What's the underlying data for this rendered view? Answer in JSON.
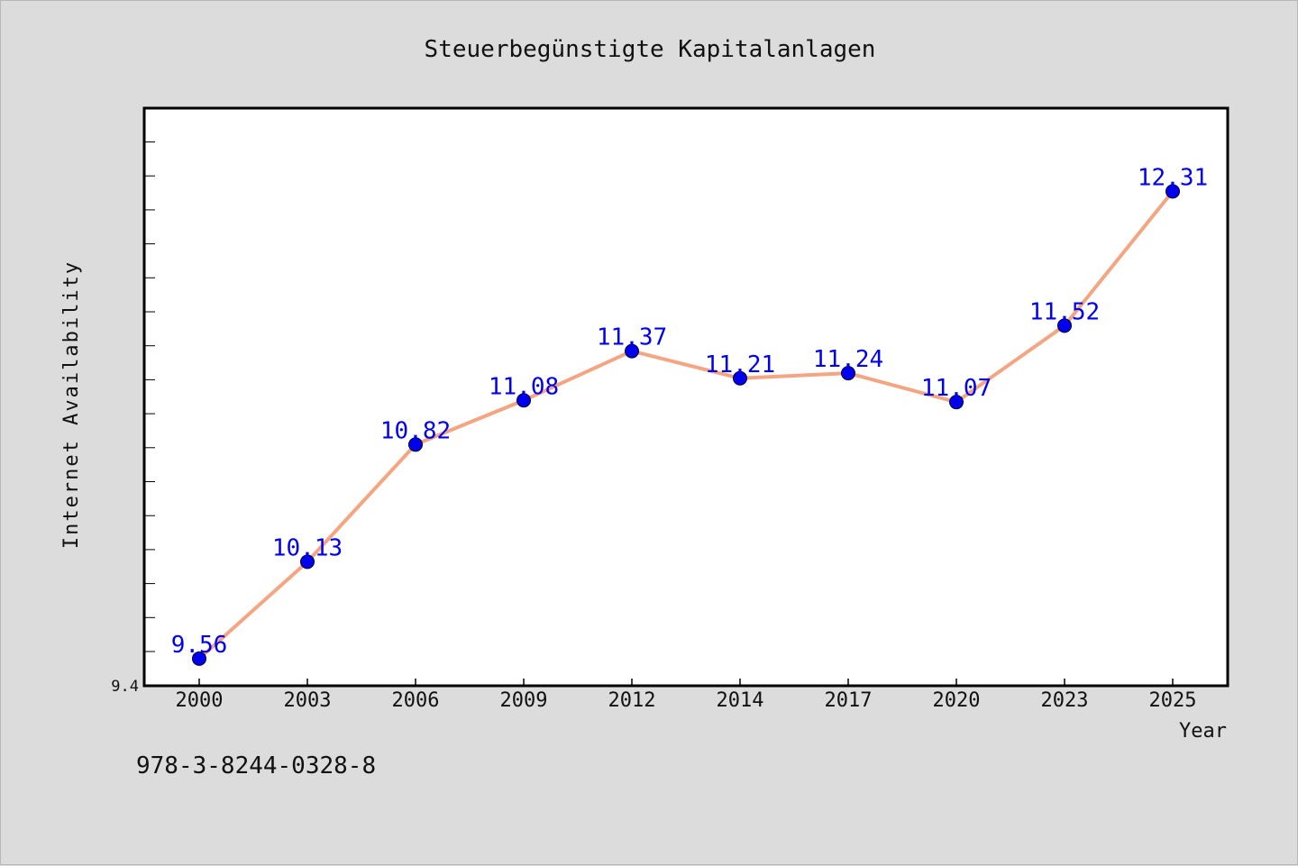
{
  "chart_data": {
    "type": "line",
    "title": "Steuerbegünstigte Kapitalanlagen",
    "xlabel": "Year",
    "ylabel": "Internet Availability",
    "categories": [
      "2000",
      "2003",
      "2006",
      "2009",
      "2012",
      "2014",
      "2017",
      "2020",
      "2023",
      "2025"
    ],
    "series": [
      {
        "values": [
          9.56,
          10.13,
          10.82,
          11.08,
          11.37,
          11.21,
          11.24,
          11.07,
          11.52,
          12.31
        ],
        "line_color": "#f4a582",
        "marker_color": "#0000ee"
      }
    ],
    "data_labels": [
      "9.56",
      "10.13",
      "10.82",
      "11.08",
      "11.37",
      "11.21",
      "11.24",
      "11.07",
      "11.52",
      "12.31"
    ],
    "ylim": [
      9.4,
      12.8
    ],
    "y_tick_labels": [
      "9.4"
    ],
    "grid": false,
    "legend": false
  },
  "footer": {
    "isbn": "978-3-8244-0328-8"
  },
  "colors": {
    "background": "#dcdcdc",
    "plot_background": "#ffffff",
    "data_label": "#0000ee"
  }
}
